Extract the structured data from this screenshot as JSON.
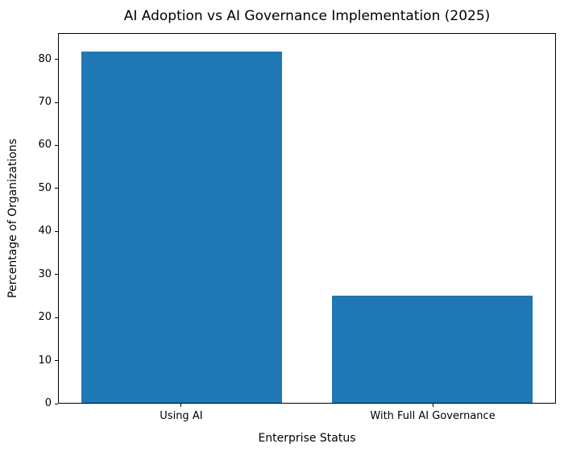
{
  "figure": {
    "background": "#ffffff",
    "text_color": "#000000",
    "spine_color": "#000000"
  },
  "chart_data": {
    "type": "bar",
    "title": "AI Adoption vs AI Governance Implementation (2025)",
    "xlabel": "Enterprise Status",
    "ylabel": "Percentage of Organizations",
    "categories": [
      "Using AI",
      "With Full AI Governance"
    ],
    "x": [
      0,
      1
    ],
    "values": [
      82,
      25
    ],
    "bar_color": "#1f77b4",
    "bar_width": 0.8,
    "xlim": [
      -0.49,
      1.49
    ],
    "ylim": [
      0,
      86.1
    ],
    "yticks": [
      0,
      10,
      20,
      30,
      40,
      50,
      60,
      70,
      80
    ],
    "grid": false,
    "legend": null
  }
}
